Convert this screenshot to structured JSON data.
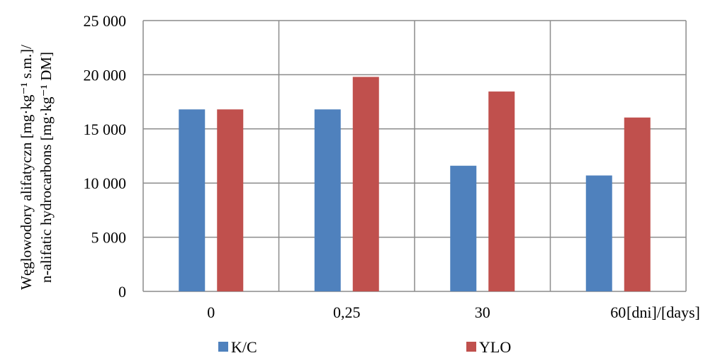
{
  "chart_data": {
    "type": "bar",
    "categories": [
      "0",
      "0,25",
      "30",
      "60"
    ],
    "series": [
      {
        "name": "K/C",
        "values": [
          16800,
          16800,
          11600,
          10700
        ],
        "color": "#4f81bd"
      },
      {
        "name": "YLO",
        "values": [
          16800,
          19800,
          18450,
          16050
        ],
        "color": "#c0504d"
      }
    ],
    "ylim": [
      0,
      25000
    ],
    "yticks": [
      0,
      5000,
      10000,
      15000,
      20000,
      25000
    ],
    "ytick_labels": [
      "0",
      "5 000",
      "10 000",
      "15 000",
      "20 000",
      "25 000"
    ],
    "ylabel_line1": "Węglowodory alifatyczn [mg·kg⁻¹ s.m.]/",
    "ylabel_line2": "n-alifatic hydrocarbons [mg·kg⁻¹ DM]",
    "xlabel": "[dni]/[days]",
    "grid": true,
    "legend_position": "bottom"
  }
}
